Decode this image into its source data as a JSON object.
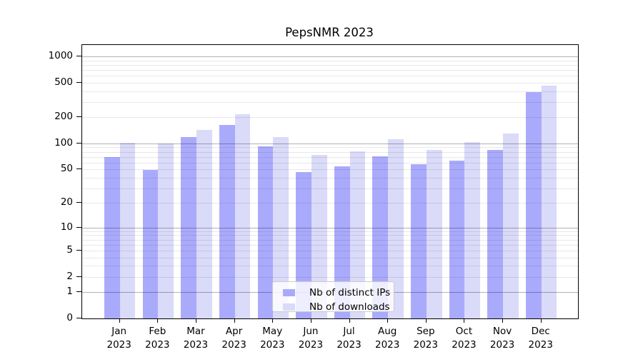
{
  "chart_data": {
    "type": "bar",
    "title": "PepsNMR 2023",
    "categories": [
      "Jan",
      "Feb",
      "Mar",
      "Apr",
      "May",
      "Jun",
      "Jul",
      "Aug",
      "Sep",
      "Oct",
      "Nov",
      "Dec"
    ],
    "x_axis": {
      "year_label": "2023"
    },
    "series": [
      {
        "name": "Nb of distinct IPs",
        "color": "#aaaafc",
        "values": [
          69,
          49,
          118,
          162,
          92,
          46,
          54,
          71,
          57,
          63,
          84,
          386
        ]
      },
      {
        "name": "Nb of downloads",
        "color": "#dadaf9",
        "values": [
          102,
          100,
          142,
          216,
          119,
          73,
          81,
          111,
          84,
          103,
          129,
          466
        ]
      }
    ],
    "y_axis": {
      "scale": "log1p",
      "tick_values": [
        0,
        1,
        2,
        5,
        10,
        20,
        50,
        100,
        200,
        500,
        1000
      ],
      "tick_labels": [
        "0",
        "1",
        "2",
        "5",
        "10",
        "20",
        "50",
        "100",
        "200",
        "500",
        "1000"
      ],
      "major_gridline_values": [
        1,
        10,
        100,
        1000
      ],
      "ylim": [
        0,
        1350
      ]
    },
    "grid": {
      "major_color": "#b3b3b3",
      "minor_color": "#e8e8e8"
    },
    "legend": {
      "position": "lower-center"
    },
    "colors": {
      "axis": "#000000",
      "background": "#ffffff"
    }
  }
}
